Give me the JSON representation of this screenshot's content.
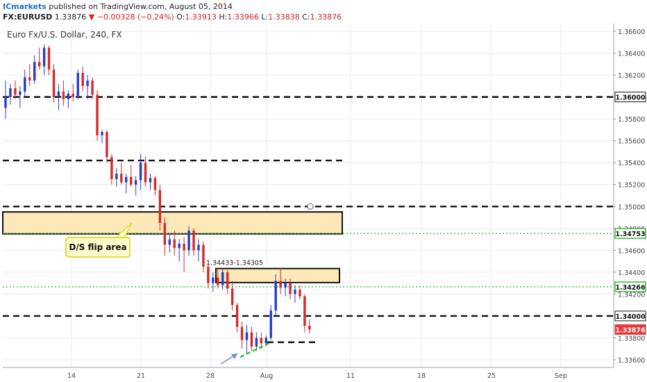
{
  "header": {
    "publisher": "ICmarkets",
    "published_text": " published on TradingView.com, August 05, 2014",
    "symbol": "FX:EURUSD",
    "last": "1.33876",
    "change": "−0.00328 (−0.24%)",
    "open_label": "O:",
    "open": "1.33913",
    "high_label": "H:",
    "high": "1.33966",
    "low_label": "L:",
    "low": "1.33838",
    "close_label": "C:",
    "close": "1.33876"
  },
  "chart_data": {
    "type": "candlestick",
    "title": "Euro Fx/U.S. Dollar, 240, FX",
    "x_ticks": [
      "14",
      "21",
      "28",
      "Aug",
      "11",
      "18",
      "25",
      "Sep"
    ],
    "y_ticks": [
      "1.36600",
      "1.36400",
      "1.36200",
      "1.36000",
      "1.35800",
      "1.35600",
      "1.35400",
      "1.35200",
      "1.35000",
      "1.34800",
      "1.34600",
      "1.34400",
      "1.34200",
      "1.34000",
      "1.33800",
      "1.33600"
    ],
    "ylim": [
      1.3353,
      1.3667
    ],
    "grid": true,
    "price_labels": [
      {
        "text": "1.36000",
        "value": 1.36,
        "style": "black"
      },
      {
        "text": "1.34753",
        "value": 1.34753,
        "style": "green"
      },
      {
        "text": "1.34266",
        "value": 1.34266,
        "style": "green"
      },
      {
        "text": "1.34000",
        "value": 1.34,
        "style": "black"
      },
      {
        "text": "1.33876",
        "value": 1.33876,
        "style": "red"
      }
    ],
    "annotations": {
      "flip_label": "D/S flip area",
      "zone_label": "1.34433-1.34305"
    },
    "levels": [
      {
        "value": 1.36,
        "style": "dashed-black"
      },
      {
        "value": 1.3542,
        "style": "dashed-black"
      },
      {
        "value": 1.35,
        "style": "dashed-black"
      },
      {
        "value": 1.34,
        "style": "dashed-black"
      },
      {
        "value": 1.3376,
        "style": "dashed-black"
      },
      {
        "value": 1.34753,
        "style": "dotted-green"
      },
      {
        "value": 1.34266,
        "style": "dotted-green"
      }
    ],
    "zones": [
      {
        "high": 1.3495,
        "low": 1.3475
      },
      {
        "high": 1.34433,
        "low": 1.34305
      }
    ],
    "colors": {
      "up": "#2a3cc8",
      "down": "#d42a2a",
      "zone_fill": "#fde8b8",
      "green": "#2ec02e",
      "grid": "#e6ebf0"
    },
    "candles": [
      [
        1.359,
        1.3615,
        1.358,
        1.36
      ],
      [
        1.36,
        1.3612,
        1.3593,
        1.3608
      ],
      [
        1.3608,
        1.3615,
        1.3598,
        1.3602
      ],
      [
        1.3602,
        1.361,
        1.359,
        1.3605
      ],
      [
        1.3605,
        1.3625,
        1.36,
        1.3618
      ],
      [
        1.3618,
        1.363,
        1.361,
        1.3615
      ],
      [
        1.3615,
        1.3638,
        1.3612,
        1.3632
      ],
      [
        1.3632,
        1.3645,
        1.3625,
        1.3628
      ],
      [
        1.3628,
        1.3648,
        1.362,
        1.3645
      ],
      [
        1.3645,
        1.3647,
        1.362,
        1.3625
      ],
      [
        1.3625,
        1.363,
        1.3595,
        1.36
      ],
      [
        1.36,
        1.3612,
        1.3588,
        1.3605
      ],
      [
        1.3605,
        1.3615,
        1.3592,
        1.3598
      ],
      [
        1.3598,
        1.3606,
        1.359,
        1.3603
      ],
      [
        1.3603,
        1.3612,
        1.3596,
        1.36
      ],
      [
        1.36,
        1.3625,
        1.3598,
        1.3622
      ],
      [
        1.3622,
        1.3628,
        1.3605,
        1.361
      ],
      [
        1.361,
        1.362,
        1.3598,
        1.3615
      ],
      [
        1.3615,
        1.3618,
        1.3598,
        1.3602
      ],
      [
        1.3602,
        1.3606,
        1.356,
        1.3565
      ],
      [
        1.3565,
        1.357,
        1.3558,
        1.3568
      ],
      [
        1.3568,
        1.357,
        1.354,
        1.3545
      ],
      [
        1.3545,
        1.3548,
        1.352,
        1.3525
      ],
      [
        1.3525,
        1.3535,
        1.3518,
        1.353
      ],
      [
        1.353,
        1.354,
        1.352,
        1.3522
      ],
      [
        1.3522,
        1.353,
        1.3512,
        1.3527
      ],
      [
        1.3527,
        1.3538,
        1.3518,
        1.352
      ],
      [
        1.352,
        1.3528,
        1.351,
        1.3524
      ],
      [
        1.3524,
        1.3548,
        1.3515,
        1.354
      ],
      [
        1.354,
        1.3546,
        1.3518,
        1.3522
      ],
      [
        1.3522,
        1.353,
        1.3515,
        1.3526
      ],
      [
        1.3526,
        1.3528,
        1.351,
        1.3515
      ],
      [
        1.3515,
        1.352,
        1.3478,
        1.3485
      ],
      [
        1.3485,
        1.349,
        1.3455,
        1.3465
      ],
      [
        1.3465,
        1.3475,
        1.3458,
        1.347
      ],
      [
        1.347,
        1.3478,
        1.3455,
        1.3462
      ],
      [
        1.3462,
        1.347,
        1.345,
        1.3466
      ],
      [
        1.3466,
        1.3472,
        1.344,
        1.346
      ],
      [
        1.346,
        1.3482,
        1.3455,
        1.3478
      ],
      [
        1.3478,
        1.348,
        1.3455,
        1.346
      ],
      [
        1.346,
        1.347,
        1.345,
        1.3465
      ],
      [
        1.3465,
        1.3468,
        1.344,
        1.3445
      ],
      [
        1.3445,
        1.3448,
        1.3425,
        1.343
      ],
      [
        1.343,
        1.344,
        1.3422,
        1.3435
      ],
      [
        1.3435,
        1.3444,
        1.3425,
        1.3428
      ],
      [
        1.3428,
        1.3444,
        1.3424,
        1.344
      ],
      [
        1.344,
        1.3442,
        1.342,
        1.3425
      ],
      [
        1.3425,
        1.3432,
        1.3405,
        1.341
      ],
      [
        1.341,
        1.3412,
        1.3385,
        1.339
      ],
      [
        1.339,
        1.3395,
        1.337,
        1.3378
      ],
      [
        1.3378,
        1.3392,
        1.3365,
        1.3385
      ],
      [
        1.3385,
        1.339,
        1.3368,
        1.3372
      ],
      [
        1.3372,
        1.3385,
        1.3368,
        1.338
      ],
      [
        1.338,
        1.3385,
        1.337,
        1.3375
      ],
      [
        1.3375,
        1.3382,
        1.3372,
        1.338
      ],
      [
        1.338,
        1.341,
        1.3378,
        1.3405
      ],
      [
        1.3405,
        1.3438,
        1.34,
        1.3432
      ],
      [
        1.3432,
        1.3444,
        1.342,
        1.3426
      ],
      [
        1.3426,
        1.3434,
        1.3418,
        1.343
      ],
      [
        1.343,
        1.3434,
        1.3415,
        1.342
      ],
      [
        1.342,
        1.3428,
        1.3412,
        1.3424
      ],
      [
        1.3424,
        1.3428,
        1.3415,
        1.3418
      ],
      [
        1.3418,
        1.342,
        1.3385,
        1.3391
      ],
      [
        1.3391,
        1.3397,
        1.3384,
        1.33876
      ]
    ]
  }
}
